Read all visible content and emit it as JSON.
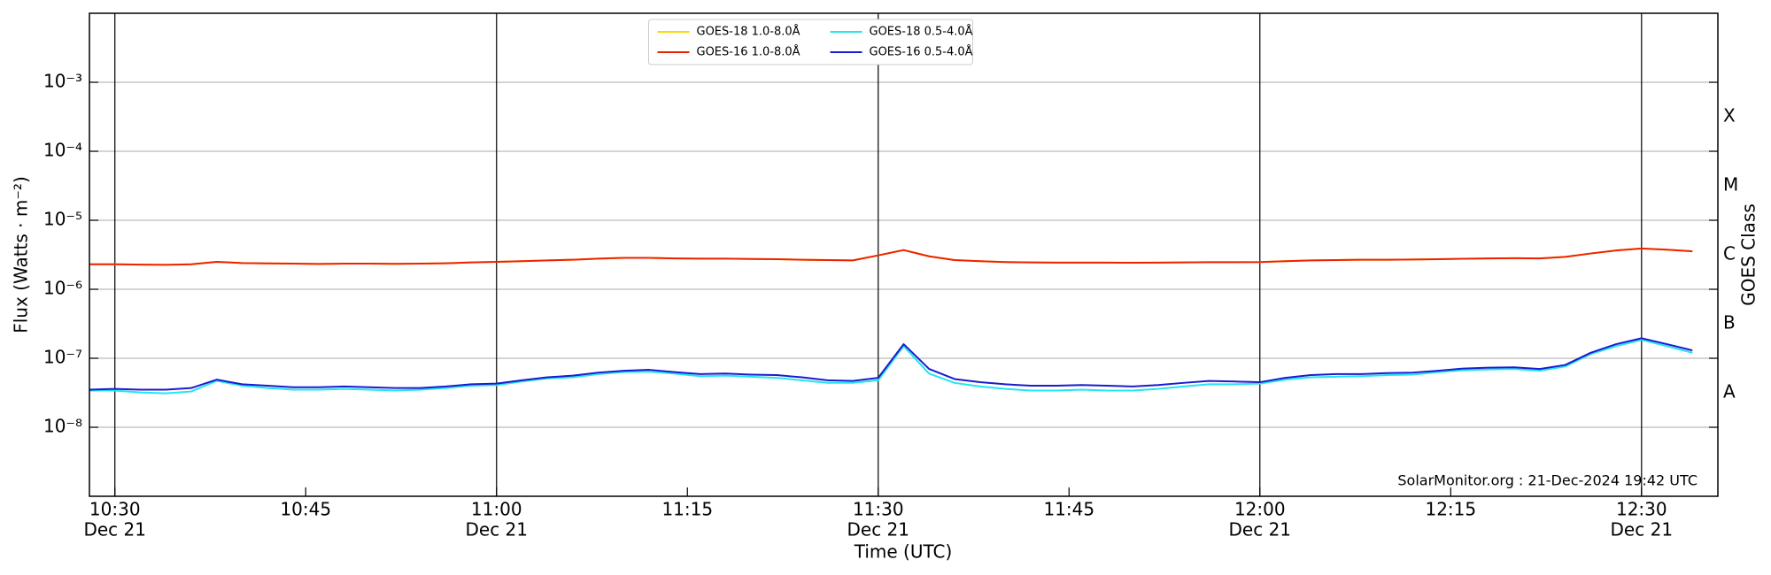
{
  "chart_data": {
    "type": "line",
    "xlabel": "Time (UTC)",
    "ylabel": "Flux (Watts · m⁻²)",
    "y2label": "GOES Class",
    "annotation": "SolarMonitor.org : 21-Dec-2024 19:42 UTC",
    "yscale": "log",
    "grid": true,
    "legend": "upper center",
    "xlim": [
      "10:28",
      "12:36"
    ],
    "xticks": [
      {
        "value": "10:30",
        "label": "10:30",
        "date": "Dec 21"
      },
      "10:45",
      {
        "value": "11:00",
        "label": "11:00",
        "date": "Dec 21"
      },
      "11:15",
      {
        "value": "11:30",
        "label": "11:30",
        "date": "Dec 21"
      },
      "11:45",
      {
        "value": "12:00",
        "label": "12:00",
        "date": "Dec 21"
      },
      "12:15",
      {
        "value": "12:30",
        "label": "12:30",
        "date": "Dec 21"
      }
    ],
    "ylim": [
      1e-09,
      0.01
    ],
    "yticks": [
      {
        "value": 1e-08,
        "label": "10⁻⁸"
      },
      {
        "value": 1e-07,
        "label": "10⁻⁷"
      },
      {
        "value": 1e-06,
        "label": "10⁻⁶"
      },
      {
        "value": 1e-05,
        "label": "10⁻⁵"
      },
      {
        "value": 0.0001,
        "label": "10⁻⁴"
      },
      {
        "value": 0.001,
        "label": "10⁻³"
      }
    ],
    "y2lim": [
      1e-09,
      0.01
    ],
    "y2ticks": [
      {
        "value": 3.162e-08,
        "label": "A"
      },
      {
        "value": 3.162e-07,
        "label": "B"
      },
      {
        "value": 3.162e-06,
        "label": "C"
      },
      {
        "value": 3.162e-05,
        "label": "M"
      },
      {
        "value": 0.0003162,
        "label": "X"
      }
    ],
    "x": [
      "10:28",
      "10:30",
      "10:32",
      "10:34",
      "10:36",
      "10:38",
      "10:40",
      "10:42",
      "10:44",
      "10:46",
      "10:48",
      "10:50",
      "10:52",
      "10:54",
      "10:56",
      "10:58",
      "11:00",
      "11:02",
      "11:04",
      "11:06",
      "11:08",
      "11:10",
      "11:12",
      "11:14",
      "11:16",
      "11:18",
      "11:20",
      "11:22",
      "11:24",
      "11:26",
      "11:28",
      "11:30",
      "11:32",
      "11:34",
      "11:36",
      "11:38",
      "11:40",
      "11:42",
      "11:44",
      "11:46",
      "11:48",
      "11:50",
      "11:52",
      "11:54",
      "11:56",
      "11:58",
      "12:00",
      "12:02",
      "12:04",
      "12:06",
      "12:08",
      "12:10",
      "12:12",
      "12:14",
      "12:16",
      "12:18",
      "12:20",
      "12:22",
      "12:24",
      "12:26",
      "12:28",
      "12:30",
      "12:32",
      "12:34"
    ],
    "series": [
      {
        "name": "GOES-18 1.0-8.0Å",
        "color": "#ffd700",
        "values": [
          2.3e-06,
          2.3e-06,
          2.28e-06,
          2.26e-06,
          2.3e-06,
          2.5e-06,
          2.4e-06,
          2.37e-06,
          2.35e-06,
          2.33e-06,
          2.35e-06,
          2.35e-06,
          2.34e-06,
          2.35e-06,
          2.38e-06,
          2.45e-06,
          2.5e-06,
          2.55e-06,
          2.62e-06,
          2.68e-06,
          2.78e-06,
          2.85e-06,
          2.85e-06,
          2.8e-06,
          2.78e-06,
          2.78e-06,
          2.75e-06,
          2.73e-06,
          2.68e-06,
          2.65e-06,
          2.62e-06,
          3.1e-06,
          3.7e-06,
          3e-06,
          2.65e-06,
          2.55e-06,
          2.48e-06,
          2.45e-06,
          2.43e-06,
          2.43e-06,
          2.43e-06,
          2.42e-06,
          2.43e-06,
          2.45e-06,
          2.47e-06,
          2.47e-06,
          2.48e-06,
          2.55e-06,
          2.62e-06,
          2.65e-06,
          2.68e-06,
          2.68e-06,
          2.7e-06,
          2.73e-06,
          2.77e-06,
          2.8e-06,
          2.82e-06,
          2.8e-06,
          2.95e-06,
          3.3e-06,
          3.65e-06,
          3.9e-06,
          3.75e-06,
          3.55e-06
        ]
      },
      {
        "name": "GOES-16 1.0-8.0Å",
        "color": "#ee2200",
        "values": [
          2.3e-06,
          2.3e-06,
          2.28e-06,
          2.26e-06,
          2.3e-06,
          2.5e-06,
          2.4e-06,
          2.37e-06,
          2.35e-06,
          2.33e-06,
          2.35e-06,
          2.35e-06,
          2.34e-06,
          2.35e-06,
          2.38e-06,
          2.45e-06,
          2.5e-06,
          2.55e-06,
          2.62e-06,
          2.68e-06,
          2.78e-06,
          2.85e-06,
          2.85e-06,
          2.8e-06,
          2.78e-06,
          2.78e-06,
          2.75e-06,
          2.73e-06,
          2.68e-06,
          2.65e-06,
          2.62e-06,
          3.1e-06,
          3.7e-06,
          3e-06,
          2.65e-06,
          2.55e-06,
          2.48e-06,
          2.45e-06,
          2.43e-06,
          2.43e-06,
          2.43e-06,
          2.42e-06,
          2.43e-06,
          2.45e-06,
          2.47e-06,
          2.47e-06,
          2.48e-06,
          2.55e-06,
          2.62e-06,
          2.65e-06,
          2.68e-06,
          2.68e-06,
          2.7e-06,
          2.73e-06,
          2.77e-06,
          2.8e-06,
          2.82e-06,
          2.8e-06,
          2.95e-06,
          3.3e-06,
          3.65e-06,
          3.9e-06,
          3.75e-06,
          3.55e-06
        ]
      },
      {
        "name": "GOES-18 0.5-4.0Å",
        "color": "#22e5f0",
        "values": [
          3.4e-08,
          3.4e-08,
          3.2e-08,
          3.1e-08,
          3.3e-08,
          4.7e-08,
          4e-08,
          3.7e-08,
          3.5e-08,
          3.5e-08,
          3.6e-08,
          3.5e-08,
          3.4e-08,
          3.5e-08,
          3.7e-08,
          4e-08,
          4.1e-08,
          4.6e-08,
          5.1e-08,
          5.3e-08,
          5.9e-08,
          6.3e-08,
          6.4e-08,
          6e-08,
          5.5e-08,
          5.6e-08,
          5.4e-08,
          5.2e-08,
          4.8e-08,
          4.4e-08,
          4.4e-08,
          4.8e-08,
          1.5e-07,
          6e-08,
          4.4e-08,
          3.9e-08,
          3.6e-08,
          3.4e-08,
          3.4e-08,
          3.5e-08,
          3.4e-08,
          3.4e-08,
          3.6e-08,
          3.9e-08,
          4.2e-08,
          4.2e-08,
          4.3e-08,
          4.9e-08,
          5.3e-08,
          5.4e-08,
          5.5e-08,
          5.7e-08,
          5.8e-08,
          6.3e-08,
          6.7e-08,
          6.9e-08,
          7e-08,
          6.6e-08,
          7.6e-08,
          1.15e-07,
          1.5e-07,
          1.85e-07,
          1.5e-07,
          1.2e-07
        ]
      },
      {
        "name": "GOES-16 0.5-4.0Å",
        "color": "#1a1ad0",
        "values": [
          3.5e-08,
          3.6e-08,
          3.5e-08,
          3.5e-08,
          3.7e-08,
          4.9e-08,
          4.2e-08,
          4e-08,
          3.8e-08,
          3.8e-08,
          3.9e-08,
          3.8e-08,
          3.7e-08,
          3.7e-08,
          3.9e-08,
          4.2e-08,
          4.3e-08,
          4.8e-08,
          5.3e-08,
          5.6e-08,
          6.2e-08,
          6.6e-08,
          6.8e-08,
          6.3e-08,
          5.9e-08,
          6e-08,
          5.8e-08,
          5.7e-08,
          5.3e-08,
          4.8e-08,
          4.7e-08,
          5.2e-08,
          1.6e-07,
          7e-08,
          5e-08,
          4.5e-08,
          4.2e-08,
          4e-08,
          4e-08,
          4.1e-08,
          4e-08,
          3.9e-08,
          4.1e-08,
          4.4e-08,
          4.7e-08,
          4.6e-08,
          4.5e-08,
          5.2e-08,
          5.7e-08,
          5.9e-08,
          5.9e-08,
          6.1e-08,
          6.2e-08,
          6.6e-08,
          7.1e-08,
          7.3e-08,
          7.4e-08,
          7e-08,
          8e-08,
          1.2e-07,
          1.6e-07,
          1.95e-07,
          1.6e-07,
          1.3e-07
        ]
      }
    ]
  }
}
